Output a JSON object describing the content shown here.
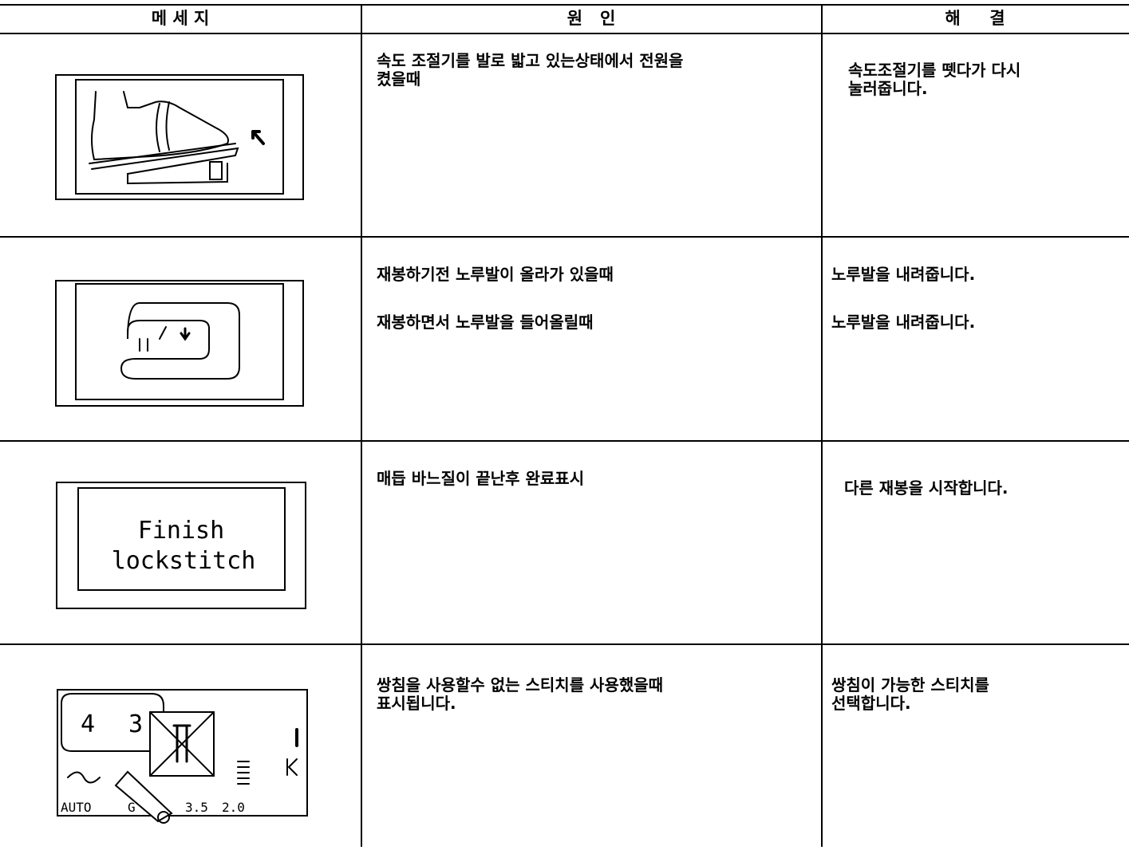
{
  "table": {
    "headers": [
      "메 세 지",
      "원   인",
      "해     결"
    ],
    "rows": [
      {
        "cause": [
          [
            "속도 조절기를 발로 밟고 있는상태에서 전원을",
            "켰을때"
          ]
        ],
        "solution": [
          [
            "속도조절기를 뗏다가 다시",
            "눌러줍니다."
          ]
        ]
      },
      {
        "cause": [
          [
            "재봉하기전 노루발이 올라가 있을때"
          ],
          [
            "재봉하면서 노루발을 들어올릴때"
          ]
        ],
        "solution": [
          [
            "노루발을 내려줍니다."
          ],
          [
            "노루발을 내려줍니다."
          ]
        ]
      },
      {
        "screen": [
          "Finish",
          "lockstitch"
        ],
        "cause": [
          [
            "매듭 바느질이 끝난후 완료표시"
          ]
        ],
        "solution": [
          [
            "다른 재봉을 시작합니다."
          ]
        ]
      },
      {
        "screen": [
          "4",
          "3",
          "AUTO",
          "G",
          "3.5",
          "2.0"
        ],
        "cause": [
          [
            "쌍침을 사용할수 없는 스티치를 사용했을때",
            "표시됩니다."
          ]
        ],
        "solution": [
          [
            "쌍침이 가능한 스티치를",
            "선택합니다."
          ]
        ]
      }
    ]
  }
}
